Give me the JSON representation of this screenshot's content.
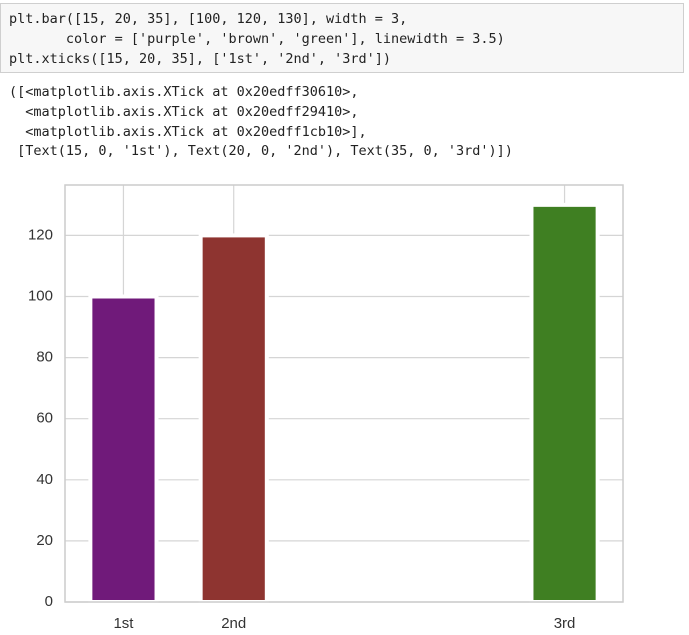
{
  "code": [
    "plt.bar([15, 20, 35], [100, 120, 130], width = 3,",
    "       color = ['purple', 'brown', 'green'], linewidth = 3.5)",
    "plt.xticks([15, 20, 35], ['1st', '2nd', '3rd'])"
  ],
  "output": [
    "([<matplotlib.axis.XTick at 0x20edff30610>,",
    "  <matplotlib.axis.XTick at 0x20edff29410>,",
    "  <matplotlib.axis.XTick at 0x20edff1cb10>],",
    " [Text(15, 0, '1st'), Text(20, 0, '2nd'), Text(35, 0, '3rd')])"
  ],
  "chart_data": {
    "type": "bar",
    "x": [
      15,
      20,
      35
    ],
    "values": [
      100,
      120,
      130
    ],
    "bar_width": 3,
    "colors": [
      "#701a7a",
      "#8e3430",
      "#3f7f22"
    ],
    "xlim": [
      12.35,
      37.65
    ],
    "xticks": [
      {
        "value": 15,
        "label": "1st"
      },
      {
        "value": 20,
        "label": "2nd"
      },
      {
        "value": 35,
        "label": "3rd"
      }
    ],
    "ylim": [
      0,
      136.5
    ],
    "yticks": [
      0,
      20,
      40,
      60,
      80,
      100,
      120
    ],
    "grid": true
  }
}
